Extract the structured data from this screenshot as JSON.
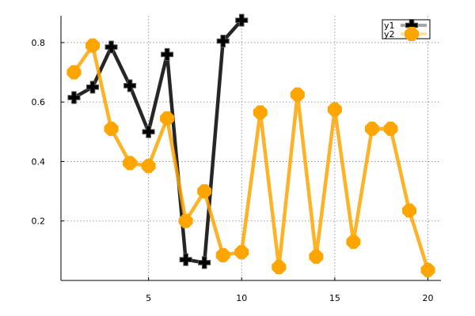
{
  "chart_data": {
    "type": "line",
    "x_ticks": [
      5,
      10,
      15,
      20
    ],
    "y_ticks": [
      0.2,
      0.4,
      0.6,
      0.8
    ],
    "xlim": [
      0.3,
      20.7
    ],
    "ylim": [
      0.0,
      0.89
    ],
    "grid": true,
    "legend_position": "top-right",
    "series": [
      {
        "name": "y1",
        "color": "#000000",
        "marker": "cross",
        "x": [
          1,
          2,
          3,
          4,
          5,
          6,
          7,
          8,
          9,
          10
        ],
        "y": [
          0.615,
          0.65,
          0.785,
          0.655,
          0.5,
          0.76,
          0.07,
          0.06,
          0.805,
          0.875
        ]
      },
      {
        "name": "y2",
        "color": "#ffa500",
        "marker": "diamond",
        "x": [
          1,
          2,
          3,
          4,
          5,
          6,
          7,
          8,
          9,
          10,
          11,
          12,
          13,
          14,
          15,
          16,
          17,
          18,
          19,
          20
        ],
        "y": [
          0.7,
          0.79,
          0.51,
          0.395,
          0.385,
          0.545,
          0.2,
          0.3,
          0.085,
          0.095,
          0.565,
          0.045,
          0.625,
          0.08,
          0.575,
          0.13,
          0.51,
          0.51,
          0.235,
          0.035
        ]
      }
    ]
  }
}
